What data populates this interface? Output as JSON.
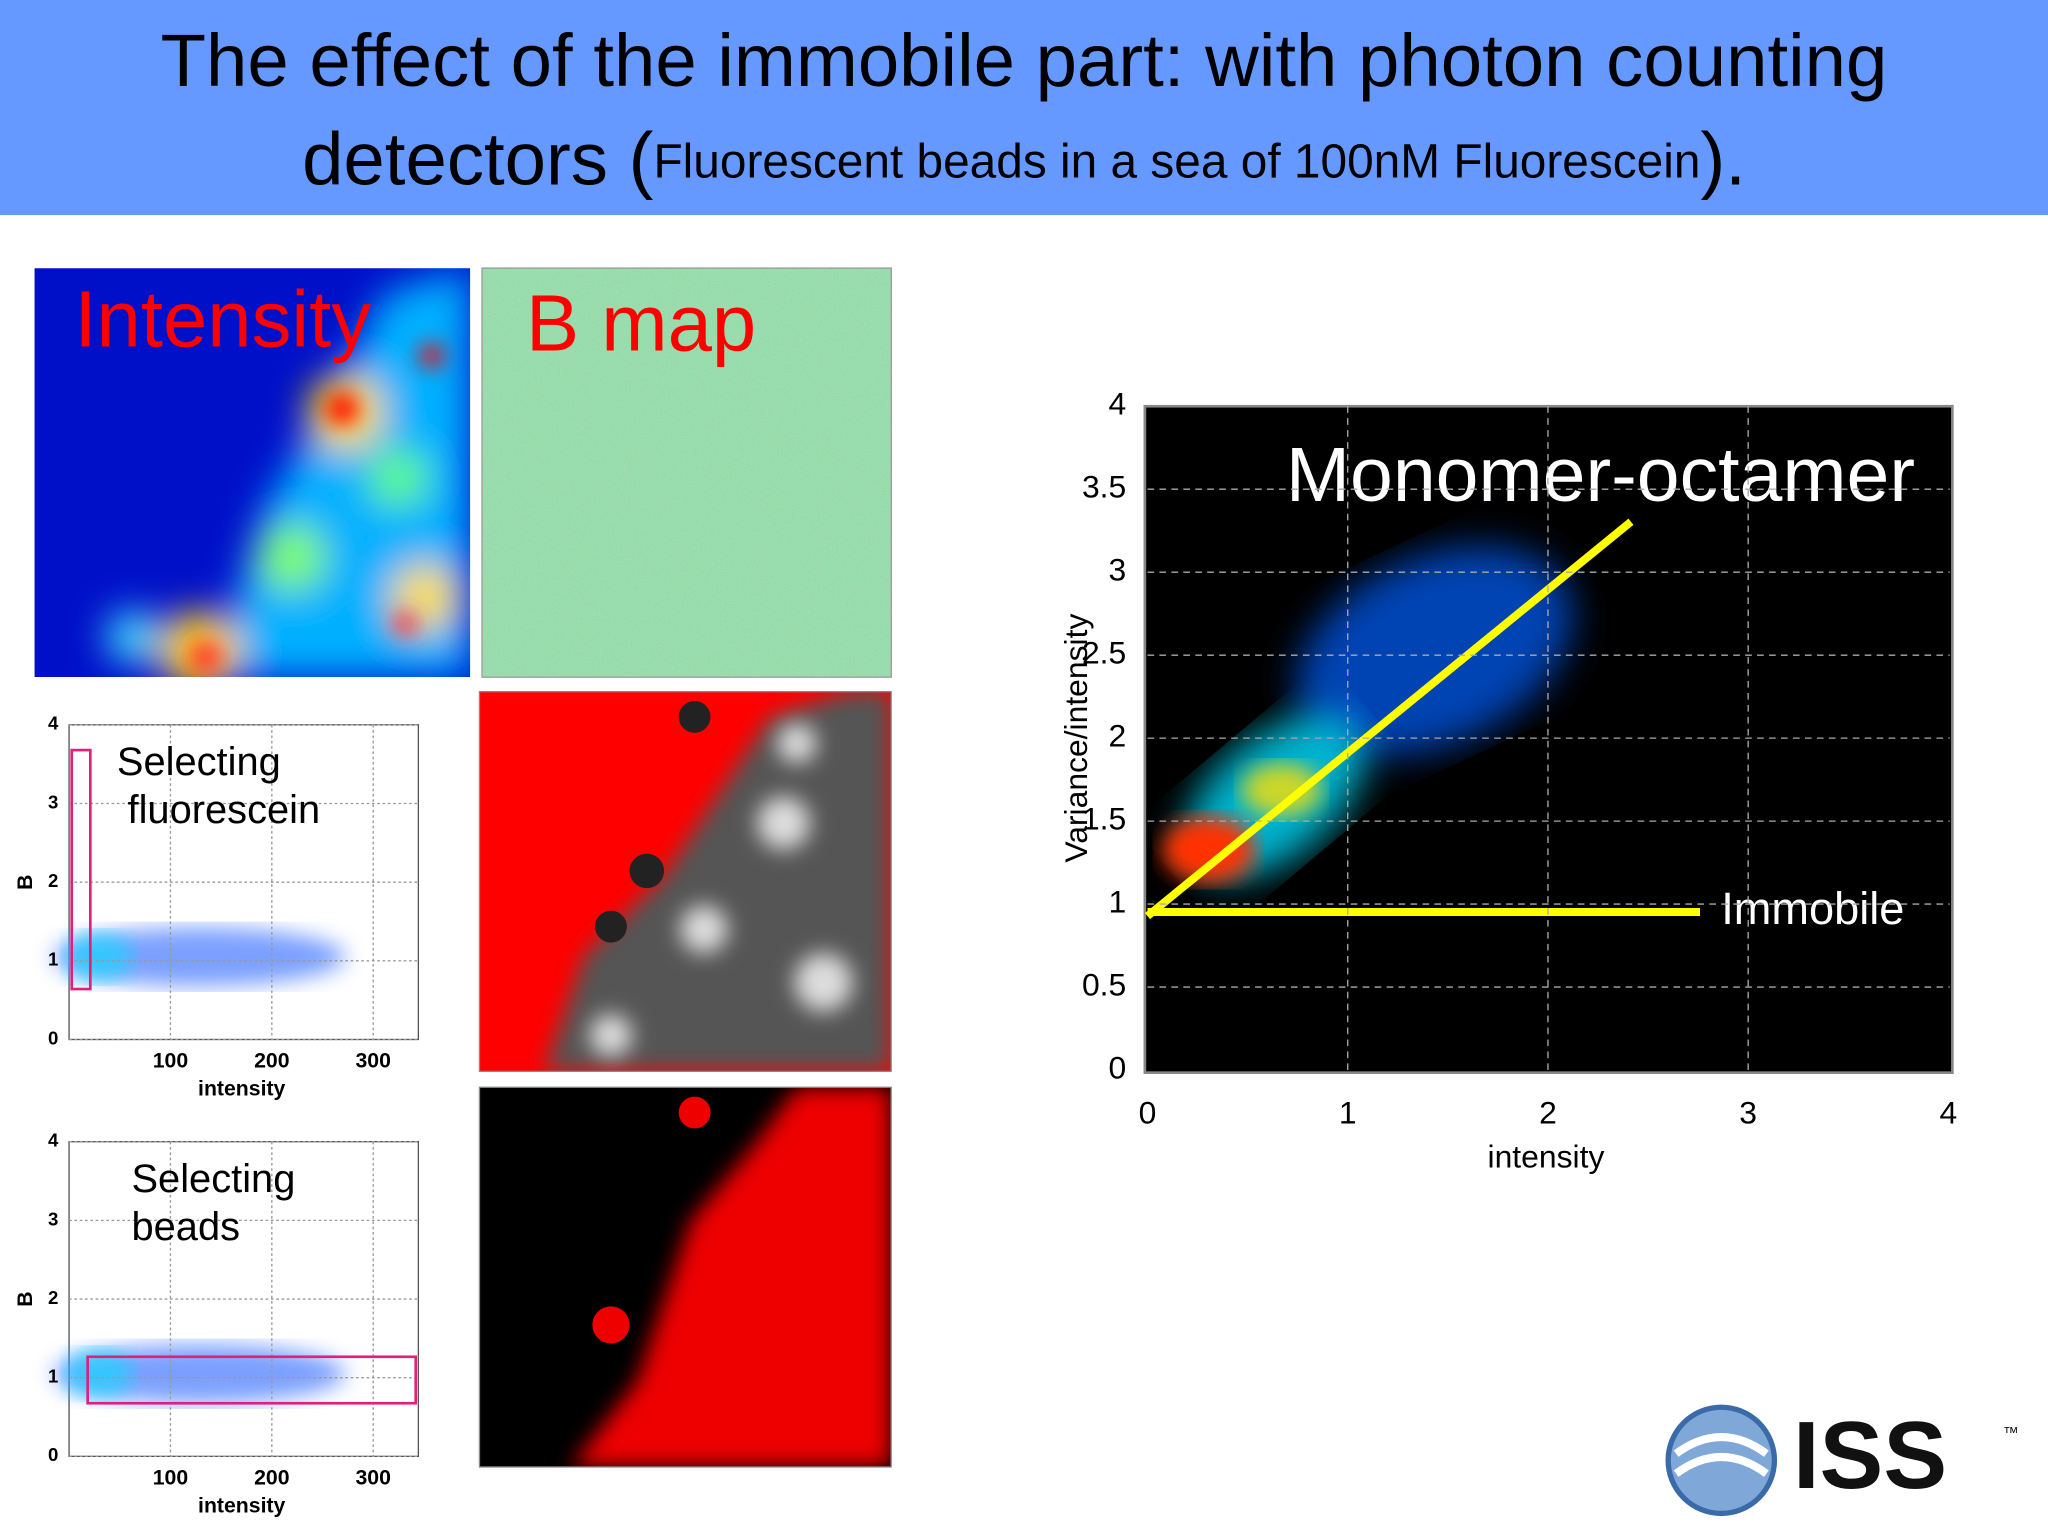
{
  "title": {
    "line1": "The effect of the immobile part: with photon counting",
    "line2": "detectors (",
    "small": "Fluorescent beads in a sea of 100nM Fluorescein",
    "end": ")."
  },
  "images": {
    "intensity": "Intensity",
    "bmap": "B map"
  },
  "small_plots": [
    {
      "label": [
        "Selecting",
        "fluorescein"
      ],
      "y_label": "B",
      "x_label": "intensity",
      "xticks": [
        100,
        200,
        300
      ],
      "yticks": [
        0,
        1,
        2,
        3,
        4
      ]
    },
    {
      "label": [
        "Selecting",
        "beads"
      ],
      "y_label": "B",
      "x_label": "intensity",
      "xticks": [
        100,
        200,
        300
      ],
      "yticks": [
        0,
        1,
        2,
        3,
        4
      ]
    }
  ],
  "main_plot": {
    "y_label": "Variance/intensity",
    "x_label": "intensity",
    "xticks": [
      0,
      1,
      2,
      3,
      4
    ],
    "yticks": [
      0,
      0.5,
      1,
      1.5,
      2,
      2.5,
      3,
      3.5,
      4
    ],
    "annotations": [
      "Monomer-octamer",
      "Immobile"
    ]
  },
  "logo": {
    "name": "ISS",
    "tm": "™"
  }
}
